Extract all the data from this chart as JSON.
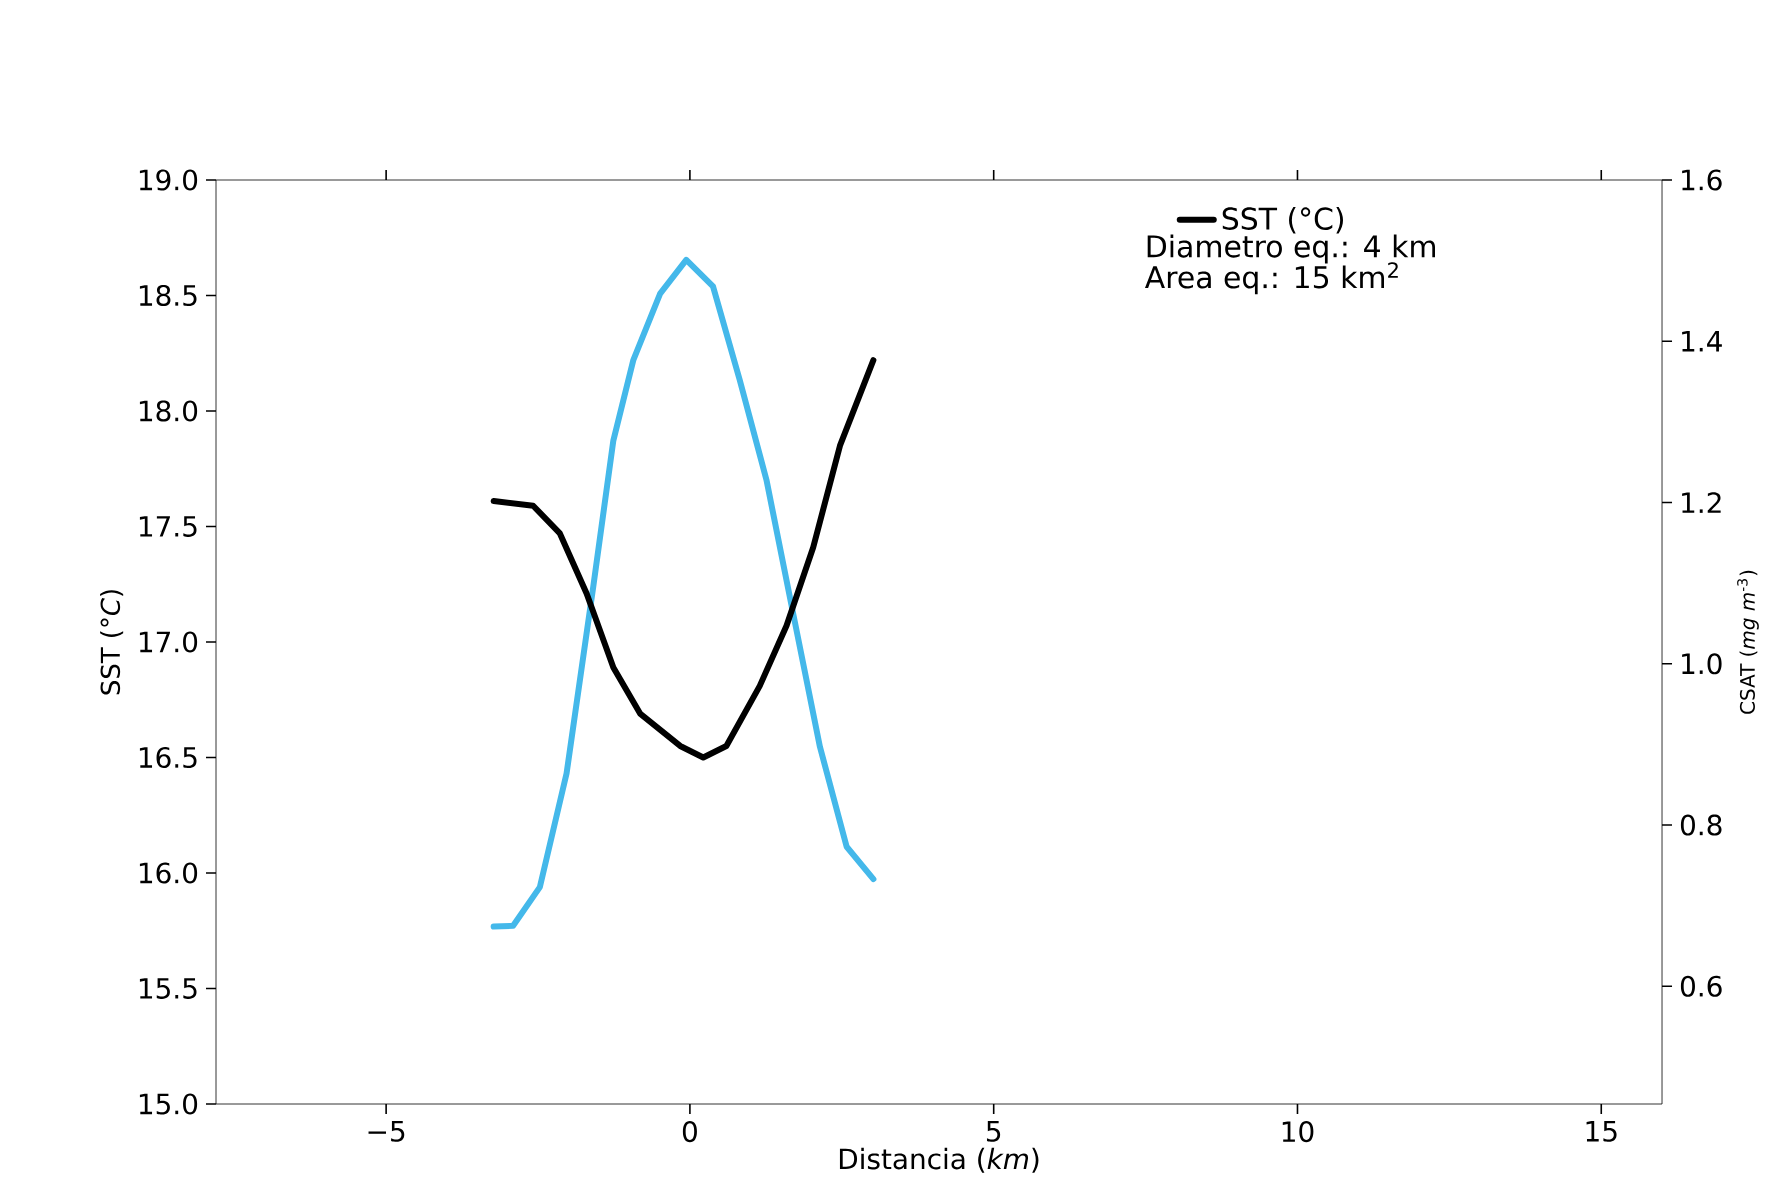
{
  "chart_data": {
    "type": "line",
    "xlabel": "Distancia (*km*)",
    "ylabel": "SST (*°C*)",
    "y2label": "CSAT (*mg m*$^{-3}$)",
    "xlim": [
      -7.8,
      16
    ],
    "xticks": [
      {
        "value": -5,
        "label": "−5"
      },
      0,
      5,
      10,
      15
    ],
    "ylim": [
      15,
      19
    ],
    "yticks": [
      {
        "value": 15,
        "label": "15.0"
      },
      15.5,
      {
        "value": 16,
        "label": "16.0"
      },
      16.5,
      {
        "value": 17,
        "label": "17.0"
      },
      17.5,
      {
        "value": 18,
        "label": "18.0"
      },
      18.5,
      {
        "value": 19,
        "label": "19.0"
      }
    ],
    "y2lim": [
      0.454,
      1.6
    ],
    "y2ticks": [
      0.6,
      0.8,
      {
        "value": 1,
        "label": "1.0"
      },
      1.2,
      1.4,
      1.6
    ],
    "legend": "top right",
    "annotations": [
      "Diametro eq.: 4 km",
      "Area eq.:  15 km$^{2}$"
    ],
    "series": [
      {
        "name": "SST (°C)",
        "color": "#000000",
        "x": [
          -3.23,
          -2.58,
          -2.14,
          -1.7,
          -1.26,
          -0.82,
          -0.16,
          0.22,
          0.6,
          1.15,
          1.59,
          2.03,
          2.47,
          3.02
        ],
        "values": [
          17.61,
          17.59,
          17.47,
          17.21,
          16.89,
          16.69,
          16.55,
          16.5,
          16.55,
          16.81,
          17.07,
          17.41,
          17.85,
          18.22
        ]
      },
      {
        "axis": "y2",
        "x": [
          -3.23,
          -2.91,
          -2.47,
          -2.03,
          -1.59,
          -1.26,
          -0.93,
          -0.49,
          -0.06,
          0.38,
          0.82,
          1.26,
          1.7,
          2.14,
          2.58,
          3.02
        ],
        "values": [
          0.674,
          0.675,
          0.723,
          0.864,
          1.096,
          1.277,
          1.377,
          1.459,
          1.501,
          1.468,
          1.352,
          1.228,
          1.062,
          0.897,
          0.773,
          0.733
        ],
        "color": "#44b8ea"
      }
    ]
  }
}
